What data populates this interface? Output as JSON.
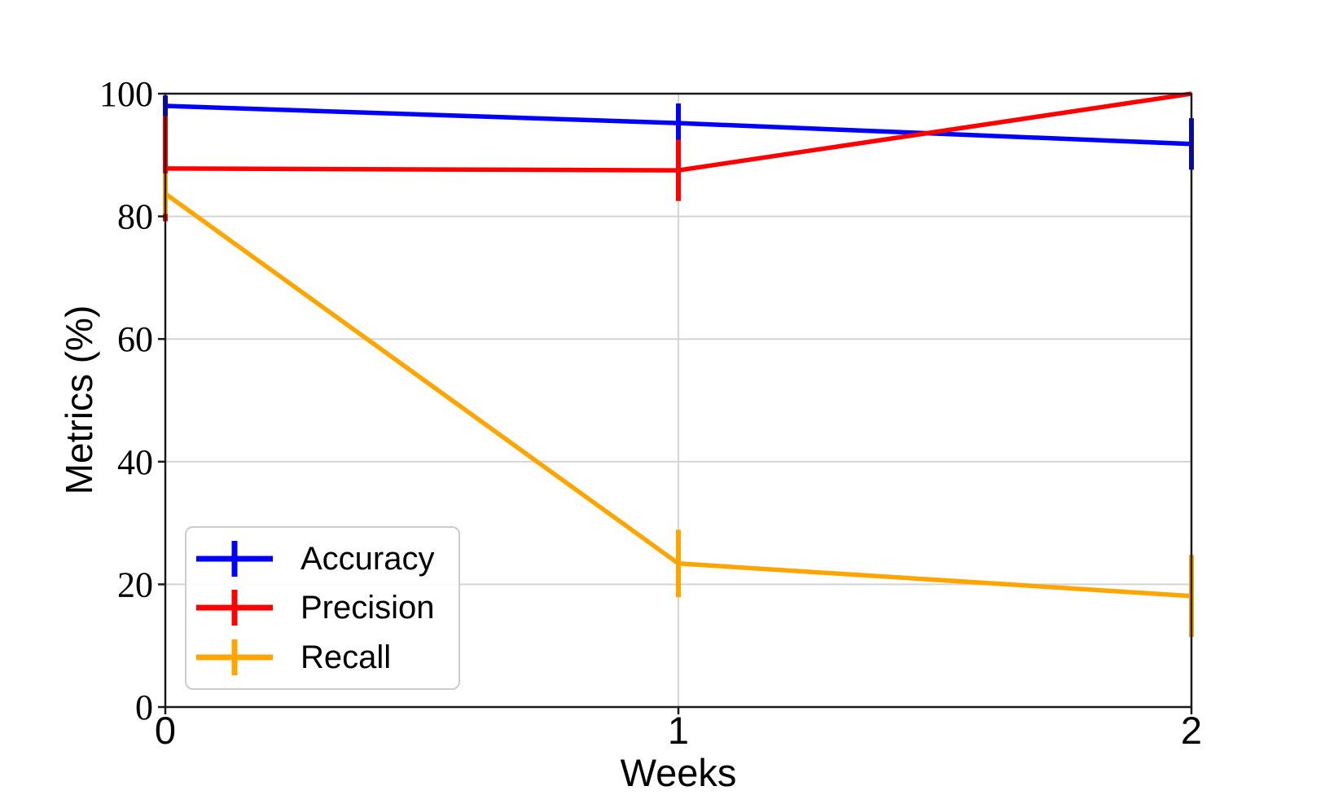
{
  "chart_data": {
    "type": "line",
    "title": "",
    "xlabel": "Weeks",
    "ylabel": "Metrics (%)",
    "x": [
      0,
      1,
      2
    ],
    "x_ticks": [
      "0",
      "1",
      "2"
    ],
    "y_ticks": [
      "0",
      "20",
      "40",
      "60",
      "80",
      "100"
    ],
    "xlim": [
      0,
      2
    ],
    "ylim": [
      0,
      100
    ],
    "grid": true,
    "legend_position": "lower-left",
    "axis_color": "#1a1a1a",
    "grid_color": "#d4d4d4",
    "series": [
      {
        "name": "Accuracy",
        "color": "#0000ff",
        "values": [
          98.0,
          95.2,
          91.8
        ],
        "errors": [
          1.7,
          3.2,
          4.2
        ]
      },
      {
        "name": "Precision",
        "color": "#ff0000",
        "values": [
          87.8,
          87.5,
          100.0
        ],
        "errors": [
          8.6,
          5.0,
          0.0
        ]
      },
      {
        "name": "Recall",
        "color": "#ffa500",
        "values": [
          83.7,
          23.4,
          18.1
        ],
        "errors": [
          3.3,
          5.5,
          6.7
        ]
      }
    ]
  }
}
